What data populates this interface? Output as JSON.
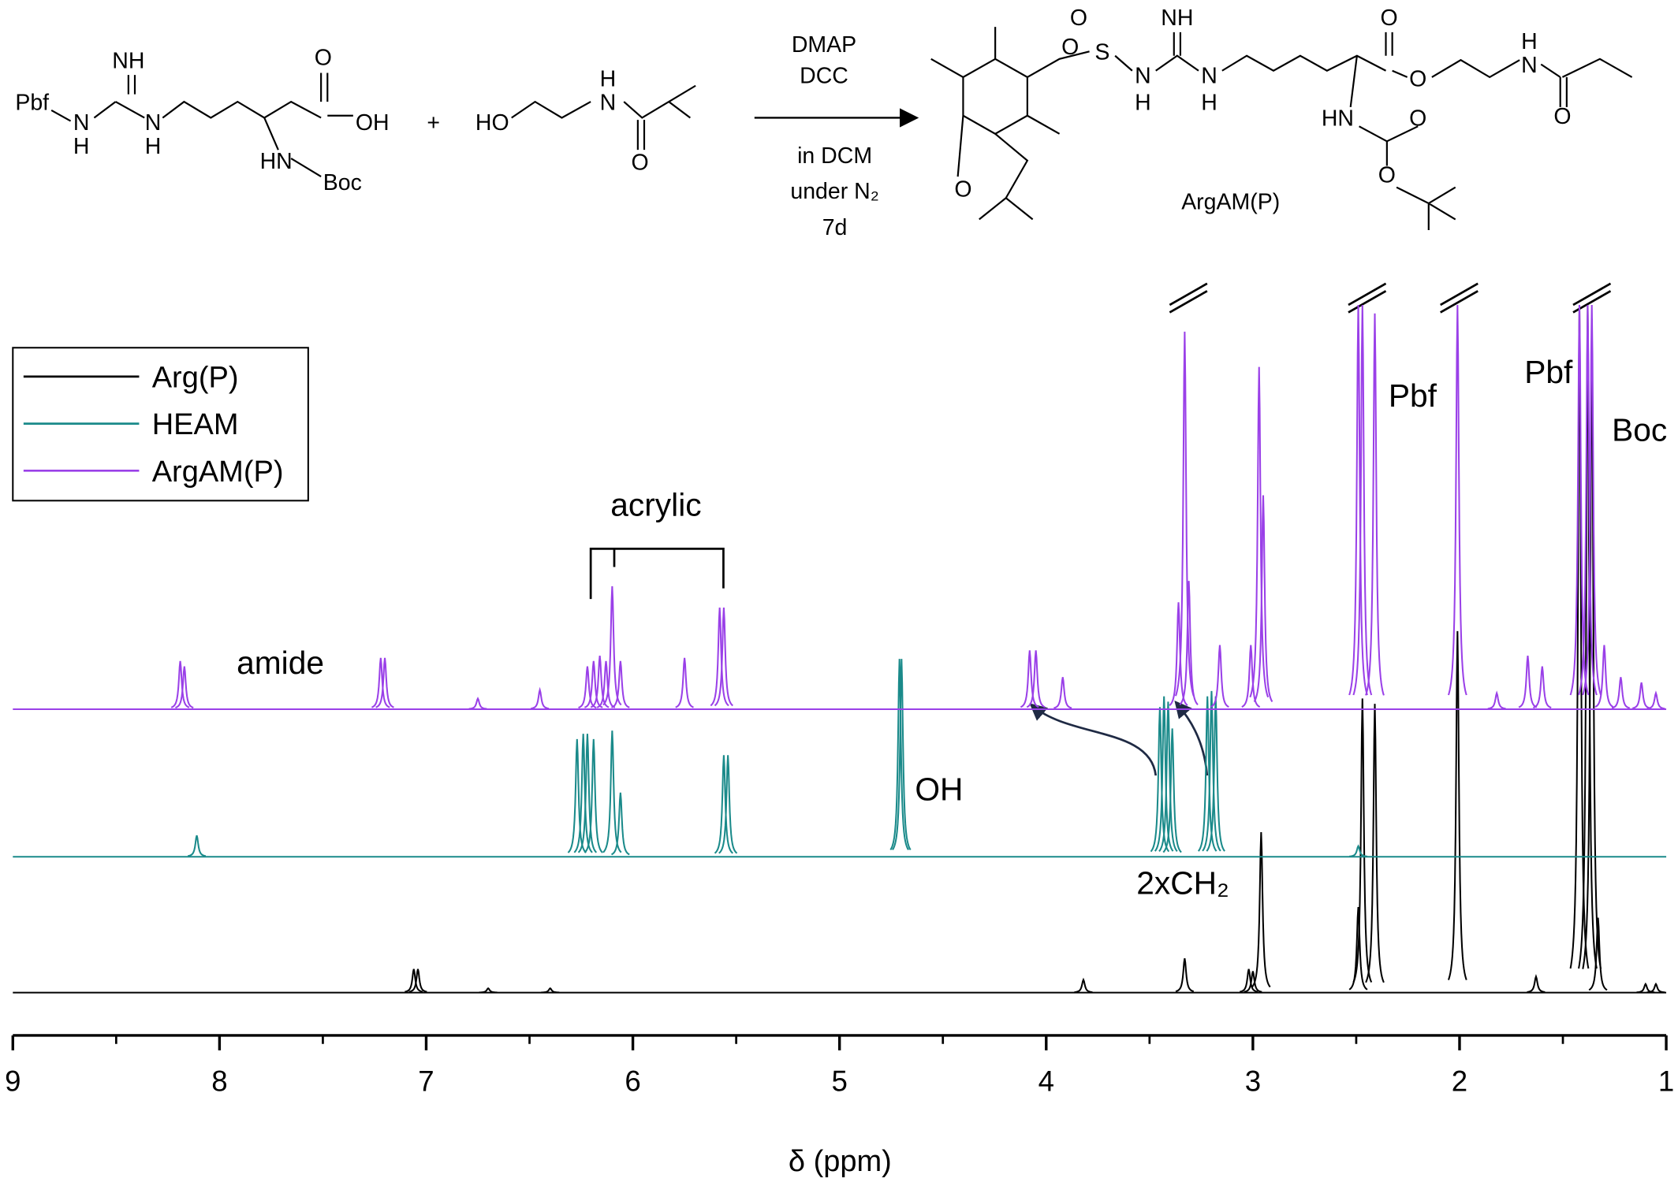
{
  "scheme": {
    "labels": [
      "Pbf",
      "N",
      "H",
      "NH",
      "N",
      "H",
      "O",
      "OH",
      "HN",
      "Boc",
      "+",
      "HO",
      "H",
      "N",
      "O",
      "DMAP",
      "DCC",
      "in DCM",
      "under N₂",
      "7d",
      "O",
      "O",
      "S",
      "NH",
      "N",
      "H",
      "N",
      "H",
      "O",
      "O",
      "H",
      "N",
      "O",
      "HN",
      "O",
      "O",
      "O",
      "ArgAM(P)"
    ]
  },
  "chart_data": {
    "type": "spectrum",
    "x_label": "δ (ppm)",
    "xlim": [
      9,
      1
    ],
    "xticks": [
      9,
      8,
      7,
      6,
      5,
      4,
      3,
      2,
      1
    ],
    "legend": "upper left",
    "annotations": [
      "amide",
      "acrylic",
      "OH",
      "2xCH₂",
      "Pbf",
      "Pbf",
      "Boc"
    ],
    "series": [
      {
        "name": "Arg(P)",
        "color": "#000000",
        "x": [
          7.06,
          7.04,
          6.7,
          6.4,
          3.82,
          3.33,
          3.02,
          3.0,
          2.96,
          2.49,
          2.47,
          2.41,
          2.01,
          1.63,
          1.42,
          1.38,
          1.36,
          1.33,
          1.1,
          1.05
        ],
        "values": [
          22,
          22,
          4,
          4,
          12,
          32,
          22,
          20,
          150,
          80,
          275,
          270,
          338,
          15,
          643,
          643,
          630,
          70,
          8,
          8
        ]
      },
      {
        "name": "HEAM",
        "color": "#1a8a8a",
        "x": [
          8.11,
          6.27,
          6.24,
          6.22,
          6.19,
          6.1,
          6.06,
          5.56,
          5.54,
          4.71,
          4.7,
          3.45,
          3.43,
          3.41,
          3.39,
          3.22,
          3.2,
          3.18,
          2.49
        ],
        "values": [
          20,
          110,
          115,
          115,
          110,
          118,
          60,
          95,
          95,
          185,
          185,
          140,
          150,
          145,
          120,
          150,
          155,
          150,
          10
        ]
      },
      {
        "name": "ArgAM(P)",
        "color": "#9a40e8",
        "x": [
          8.19,
          8.17,
          7.22,
          7.2,
          6.75,
          6.45,
          6.22,
          6.19,
          6.16,
          6.13,
          6.1,
          6.06,
          5.75,
          5.58,
          5.56,
          4.08,
          4.05,
          3.92,
          3.36,
          3.33,
          3.31,
          3.16,
          3.01,
          2.97,
          2.95,
          2.49,
          2.47,
          2.41,
          2.01,
          1.82,
          1.67,
          1.6,
          1.42,
          1.38,
          1.36,
          1.3,
          1.22,
          1.12,
          1.05
        ],
        "values": [
          45,
          40,
          48,
          48,
          10,
          18,
          40,
          45,
          50,
          45,
          115,
          45,
          48,
          95,
          95,
          55,
          55,
          30,
          100,
          353,
          120,
          60,
          60,
          320,
          200,
          378,
          378,
          370,
          378,
          15,
          50,
          40,
          378,
          378,
          378,
          60,
          30,
          25,
          15
        ]
      }
    ]
  }
}
